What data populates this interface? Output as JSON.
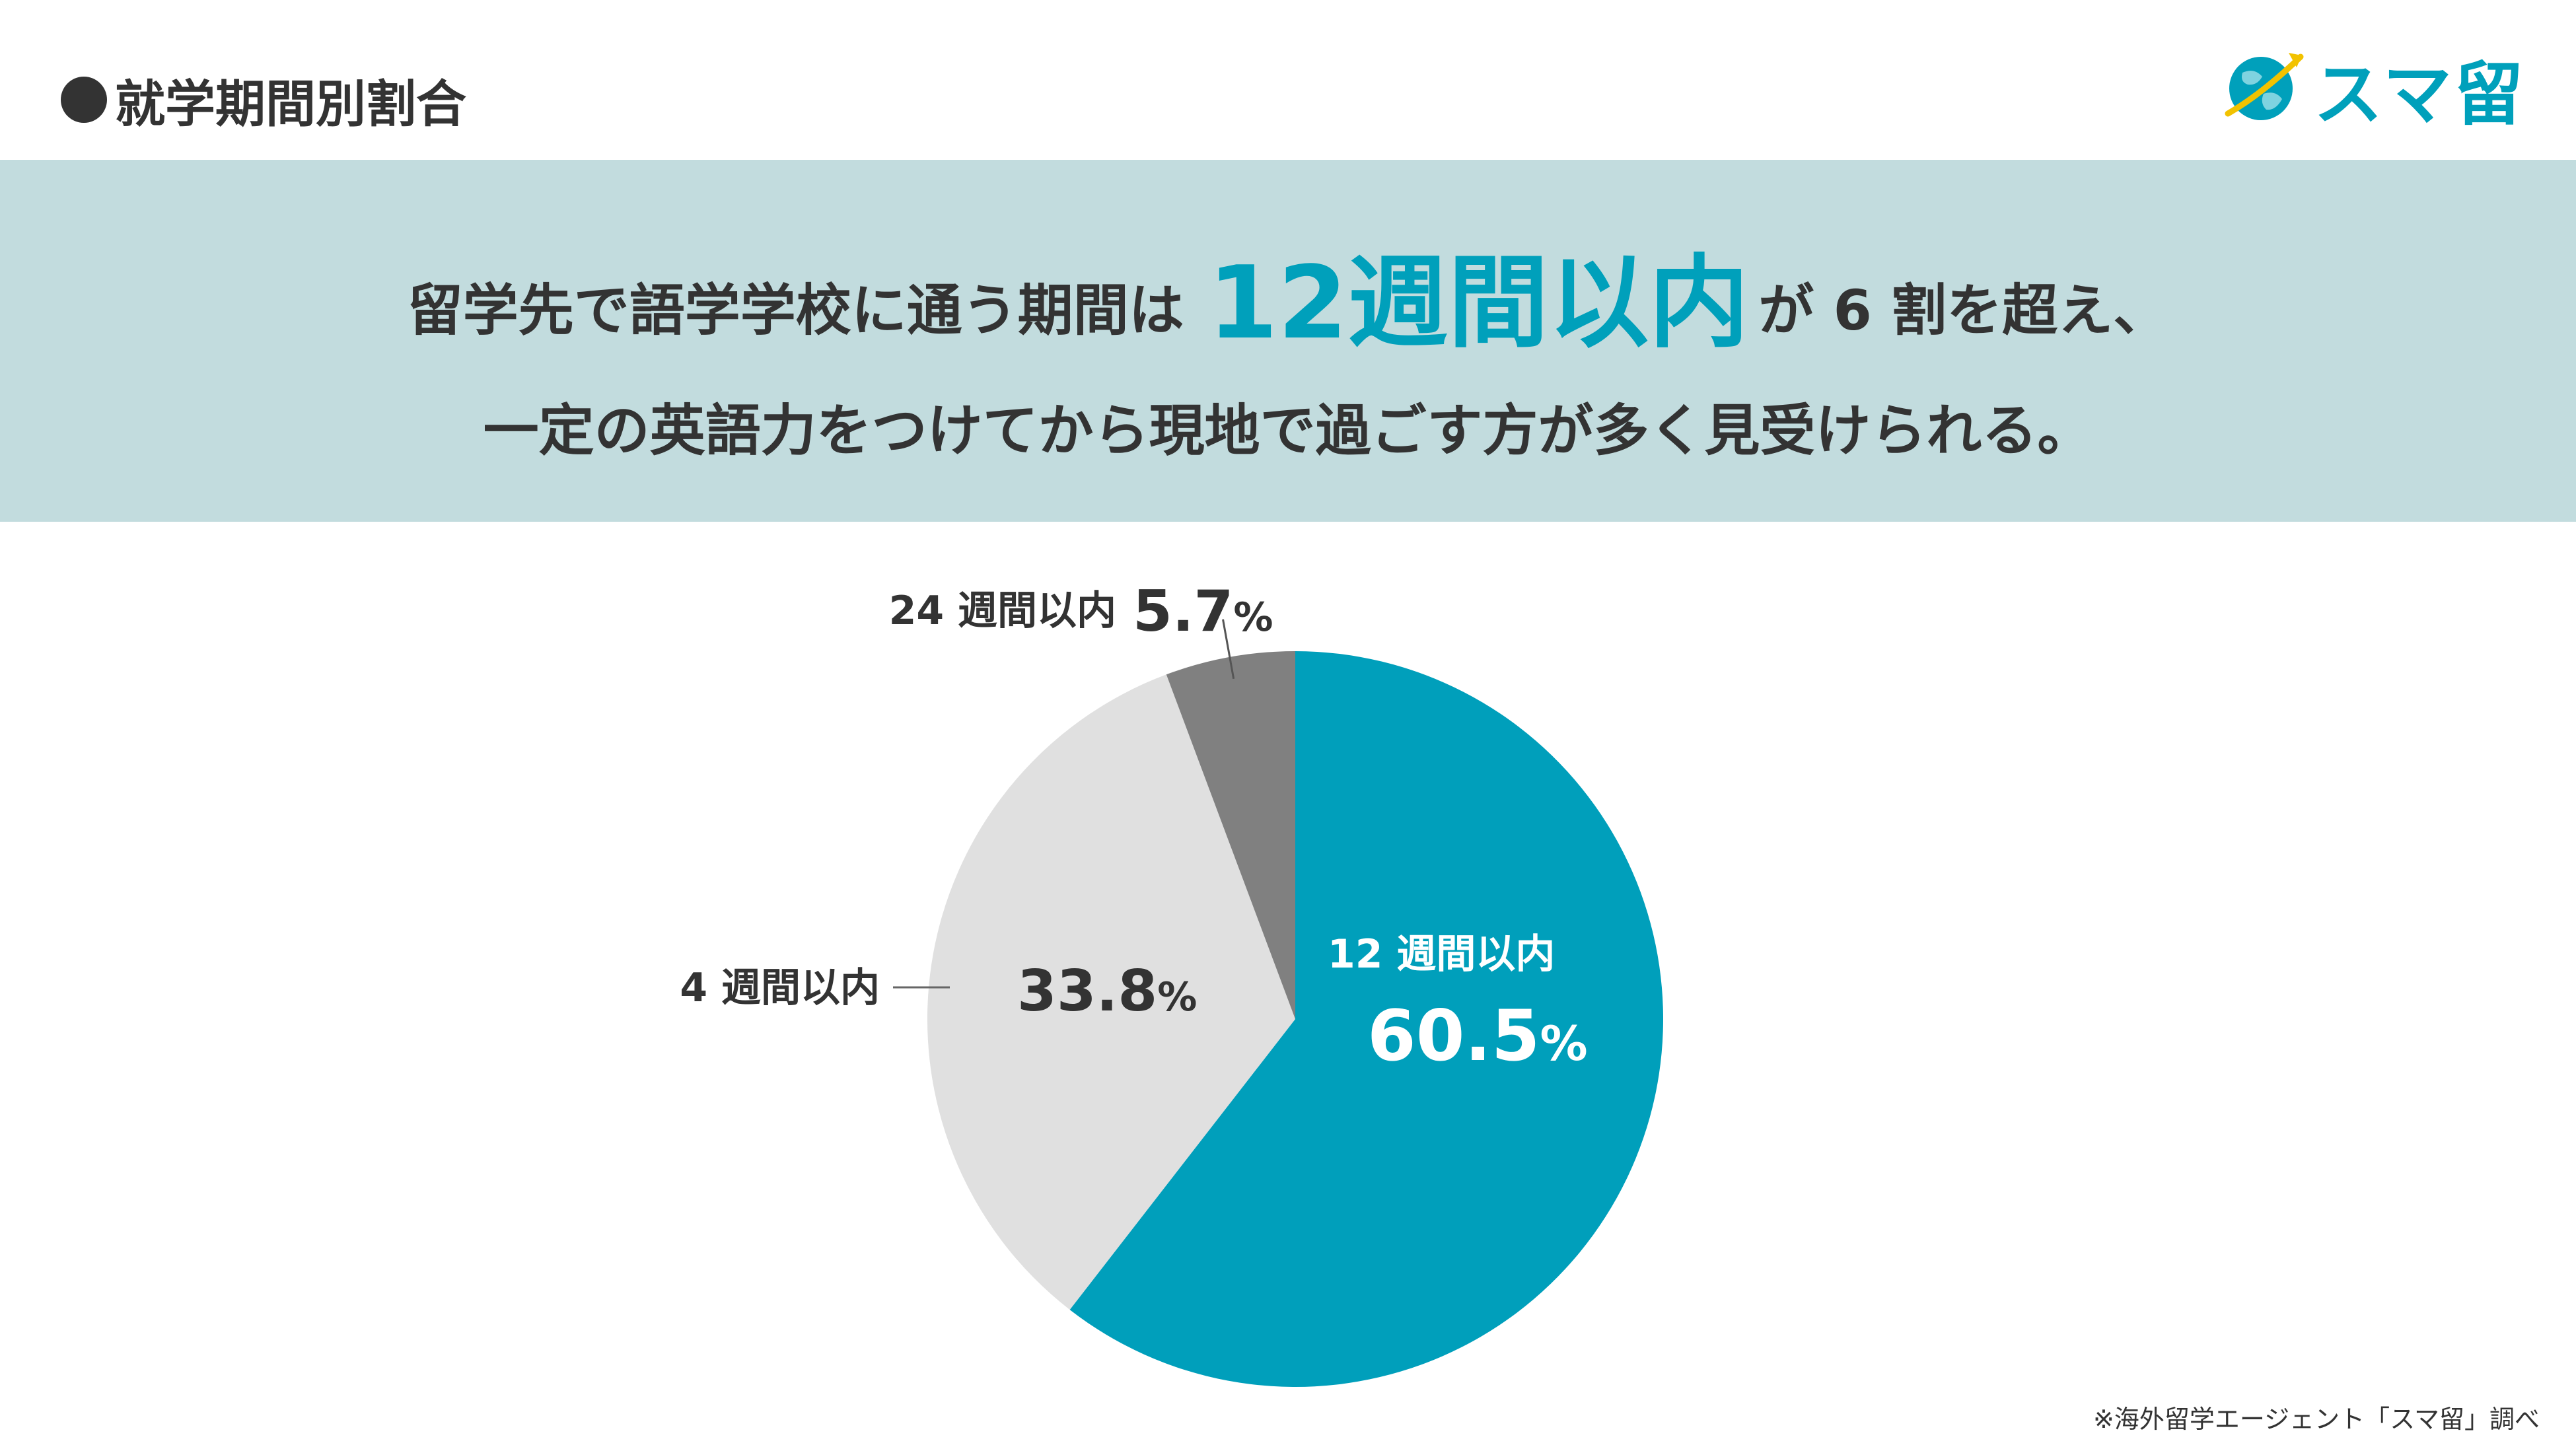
{
  "header": {
    "title": "就学期間別割合",
    "logo_text": "スマ留"
  },
  "banner": {
    "line1_before": "留学先で語学学校に通う期間は",
    "line1_highlight": "12週間以内",
    "line1_after": "が 6 割を超え、",
    "line2": "一定の英語力をつけてから現地で過ごす方が多く見受けられる。"
  },
  "chart_data": {
    "type": "pie",
    "unit": "%",
    "slices": [
      {
        "label": "12 週間以内",
        "value": 60.5,
        "value_text": "60.5",
        "color": "#009fbb"
      },
      {
        "label": "4 週間以内",
        "value": 33.8,
        "value_text": "33.8",
        "color": "#e0e0e0"
      },
      {
        "label": "24 週間以内",
        "value": 5.7,
        "value_text": "5.7",
        "color": "#808080"
      }
    ],
    "start": "12 o'clock",
    "direction": "clockwise"
  },
  "footnote": "※海外留学エージェント「スマ留」調べ",
  "colors": {
    "accent": "#00a0bb",
    "banner_bg": "#c2dcde",
    "text": "#333333",
    "logo_yellow": "#f2c200"
  }
}
